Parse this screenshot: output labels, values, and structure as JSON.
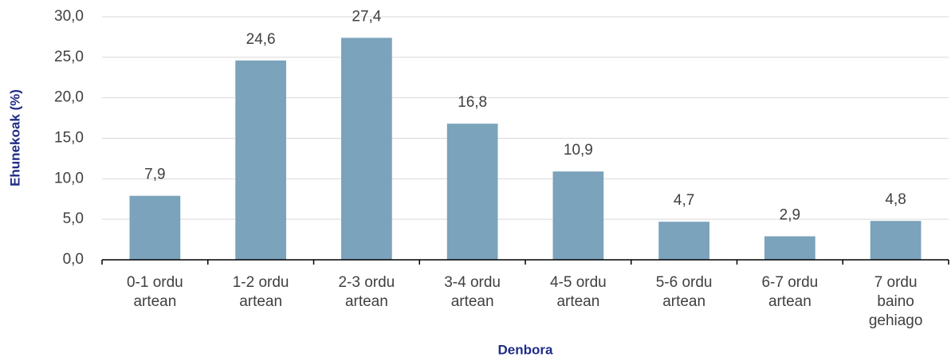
{
  "chart_data": {
    "type": "bar",
    "x_label": "Denbora",
    "y_label": "Ehunekoak (%)",
    "categories": [
      "0-1 ordu\nartean",
      "1-2 ordu\nartean",
      "2-3 ordu\nartean",
      "3-4 ordu\nartean",
      "4-5 ordu\nartean",
      "5-6 ordu\nartean",
      "6-7 ordu\nartean",
      "7 ordu\nbaino\ngehiago"
    ],
    "values": [
      7.9,
      24.6,
      27.4,
      16.8,
      10.9,
      4.7,
      2.9,
      4.8
    ],
    "value_labels": [
      "7,9",
      "24,6",
      "27,4",
      "16,8",
      "10,9",
      "4,7",
      "2,9",
      "4,8"
    ],
    "color": "#7ba3bb",
    "ylim": [
      0,
      30
    ],
    "yticks": [
      {
        "value": 0,
        "label": "0,0"
      },
      {
        "value": 5,
        "label": "5,0"
      },
      {
        "value": 10,
        "label": "10,0"
      },
      {
        "value": 15,
        "label": "15,0"
      },
      {
        "value": 20,
        "label": "20,0"
      },
      {
        "value": 25,
        "label": "25,0"
      },
      {
        "value": 30,
        "label": "30,0"
      }
    ],
    "grid": true
  }
}
